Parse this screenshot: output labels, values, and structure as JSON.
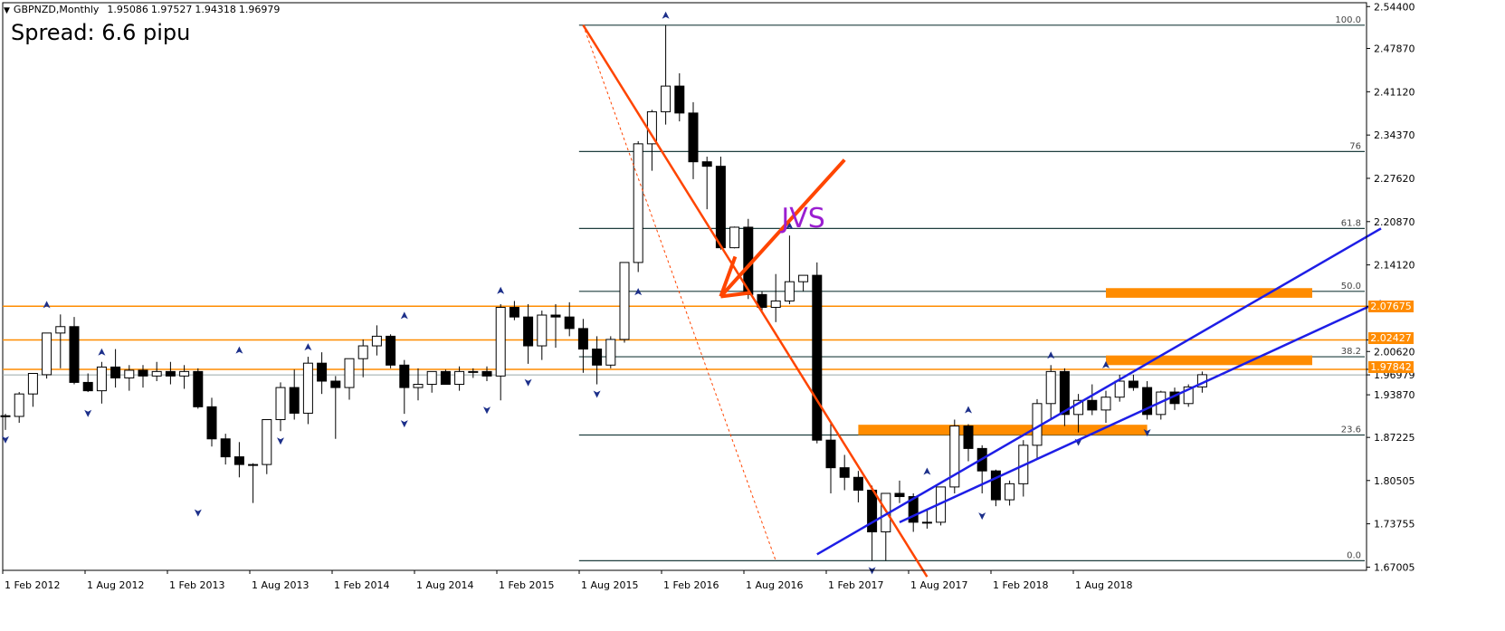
{
  "header": {
    "symbol": "GBPNZD,Monthly",
    "values": [
      "1.95086",
      "1.97527",
      "1.94318",
      "1.96979"
    ]
  },
  "spread_label": "Spread: 6.6 pipu",
  "annotation_label": "JVS",
  "colors": {
    "background": "#ffffff",
    "candle_up": "#ffffff",
    "candle_down": "#000000",
    "fib": "#1f3f3f",
    "support_resistance": "#ff8c00",
    "trendline": "#ff4500",
    "channel": "#1e1ee6",
    "annotation_text": "#9b1fd1",
    "fractal": "#1c2f8a"
  },
  "chart_data": {
    "type": "candlestick",
    "timeframe": "Monthly",
    "y_ticks": [
      "2.54400",
      "2.47870",
      "2.41120",
      "2.34370",
      "2.27620",
      "2.20870",
      "2.14120",
      "2.07675",
      "2.02427",
      "2.00620",
      "1.97842",
      "1.96979",
      "1.93870",
      "1.87225",
      "1.80505",
      "1.73755",
      "1.67005"
    ],
    "ylim": [
      1.665,
      2.55
    ],
    "x_ticks": [
      "1 Feb 2012",
      "1 Aug 2012",
      "1 Feb 2013",
      "1 Aug 2013",
      "1 Feb 2014",
      "1 Aug 2014",
      "1 Feb 2015",
      "1 Aug 2015",
      "1 Feb 2016",
      "1 Aug 2016",
      "1 Feb 2017",
      "1 Aug 2017",
      "1 Feb 2018",
      "1 Aug 2018"
    ],
    "fib_levels": [
      {
        "label": "100.0",
        "price": 2.515
      },
      {
        "label": "76",
        "price": 2.318
      },
      {
        "label": "61.8",
        "price": 2.198
      },
      {
        "label": "50.0",
        "price": 2.1
      },
      {
        "label": "38.2",
        "price": 1.998
      },
      {
        "label": "23.6",
        "price": 1.876
      },
      {
        "label": "0.0",
        "price": 1.68
      }
    ],
    "price_labels": [
      "2.07675",
      "2.02427",
      "1.97842",
      "1.96979"
    ],
    "horizontal_levels": [
      2.07675,
      2.02427,
      1.97842
    ],
    "candles": [
      {
        "o": 1.905,
        "h": 1.909,
        "l": 1.884,
        "c": 1.906
      },
      {
        "o": 1.905,
        "h": 1.943,
        "l": 1.895,
        "c": 1.94
      },
      {
        "o": 1.94,
        "h": 1.97,
        "l": 1.92,
        "c": 1.972
      },
      {
        "o": 1.97,
        "h": 2.034,
        "l": 1.964,
        "c": 2.035
      },
      {
        "o": 2.035,
        "h": 2.064,
        "l": 1.98,
        "c": 2.045
      },
      {
        "o": 2.045,
        "h": 2.06,
        "l": 1.955,
        "c": 1.958
      },
      {
        "o": 1.958,
        "h": 1.972,
        "l": 1.943,
        "c": 1.945
      },
      {
        "o": 1.945,
        "h": 1.99,
        "l": 1.925,
        "c": 1.982
      },
      {
        "o": 1.982,
        "h": 2.01,
        "l": 1.95,
        "c": 1.965
      },
      {
        "o": 1.965,
        "h": 1.985,
        "l": 1.945,
        "c": 1.977
      },
      {
        "o": 1.977,
        "h": 1.985,
        "l": 1.95,
        "c": 1.968
      },
      {
        "o": 1.968,
        "h": 1.99,
        "l": 1.96,
        "c": 1.975
      },
      {
        "o": 1.975,
        "h": 1.99,
        "l": 1.955,
        "c": 1.968
      },
      {
        "o": 1.968,
        "h": 1.985,
        "l": 1.948,
        "c": 1.975
      },
      {
        "o": 1.975,
        "h": 1.98,
        "l": 1.917,
        "c": 1.92
      },
      {
        "o": 1.92,
        "h": 1.934,
        "l": 1.858,
        "c": 1.87
      },
      {
        "o": 1.87,
        "h": 1.878,
        "l": 1.83,
        "c": 1.842
      },
      {
        "o": 1.842,
        "h": 1.865,
        "l": 1.81,
        "c": 1.83
      },
      {
        "o": 1.83,
        "h": 1.832,
        "l": 1.77,
        "c": 1.83
      },
      {
        "o": 1.83,
        "h": 1.893,
        "l": 1.815,
        "c": 1.9
      },
      {
        "o": 1.9,
        "h": 1.958,
        "l": 1.882,
        "c": 1.95
      },
      {
        "o": 1.95,
        "h": 1.978,
        "l": 1.9,
        "c": 1.91
      },
      {
        "o": 1.91,
        "h": 1.998,
        "l": 1.893,
        "c": 1.988
      },
      {
        "o": 1.988,
        "h": 2.005,
        "l": 1.94,
        "c": 1.96
      },
      {
        "o": 1.96,
        "h": 1.968,
        "l": 1.87,
        "c": 1.95
      },
      {
        "o": 1.95,
        "h": 1.995,
        "l": 1.931,
        "c": 1.995
      },
      {
        "o": 1.995,
        "h": 2.025,
        "l": 1.966,
        "c": 2.015
      },
      {
        "o": 2.015,
        "h": 2.047,
        "l": 2.0,
        "c": 2.03
      },
      {
        "o": 2.03,
        "h": 2.033,
        "l": 1.98,
        "c": 1.985
      },
      {
        "o": 1.985,
        "h": 1.993,
        "l": 1.909,
        "c": 1.95
      },
      {
        "o": 1.95,
        "h": 1.98,
        "l": 1.93,
        "c": 1.955
      },
      {
        "o": 1.955,
        "h": 1.975,
        "l": 1.942,
        "c": 1.975
      },
      {
        "o": 1.975,
        "h": 1.978,
        "l": 1.955,
        "c": 1.955
      },
      {
        "o": 1.955,
        "h": 1.983,
        "l": 1.945,
        "c": 1.975
      },
      {
        "o": 1.975,
        "h": 1.98,
        "l": 1.965,
        "c": 1.975
      },
      {
        "o": 1.975,
        "h": 1.983,
        "l": 1.96,
        "c": 1.968
      },
      {
        "o": 1.968,
        "h": 2.08,
        "l": 1.93,
        "c": 2.075
      },
      {
        "o": 2.075,
        "h": 2.085,
        "l": 2.055,
        "c": 2.06
      },
      {
        "o": 2.06,
        "h": 2.08,
        "l": 1.987,
        "c": 2.015
      },
      {
        "o": 2.015,
        "h": 2.07,
        "l": 1.993,
        "c": 2.063
      },
      {
        "o": 2.063,
        "h": 2.08,
        "l": 2.012,
        "c": 2.06
      },
      {
        "o": 2.06,
        "h": 2.083,
        "l": 2.03,
        "c": 2.042
      },
      {
        "o": 2.042,
        "h": 2.057,
        "l": 1.973,
        "c": 2.01
      },
      {
        "o": 2.01,
        "h": 2.03,
        "l": 1.955,
        "c": 1.985
      },
      {
        "o": 1.985,
        "h": 2.03,
        "l": 1.98,
        "c": 2.025
      },
      {
        "o": 2.025,
        "h": 2.14,
        "l": 2.02,
        "c": 2.145
      },
      {
        "o": 2.145,
        "h": 2.334,
        "l": 2.13,
        "c": 2.33
      },
      {
        "o": 2.33,
        "h": 2.383,
        "l": 2.288,
        "c": 2.38
      },
      {
        "o": 2.38,
        "h": 2.515,
        "l": 2.36,
        "c": 2.42
      },
      {
        "o": 2.42,
        "h": 2.44,
        "l": 2.365,
        "c": 2.378
      },
      {
        "o": 2.378,
        "h": 2.395,
        "l": 2.275,
        "c": 2.302
      },
      {
        "o": 2.302,
        "h": 2.31,
        "l": 2.228,
        "c": 2.295
      },
      {
        "o": 2.295,
        "h": 2.31,
        "l": 2.165,
        "c": 2.168
      },
      {
        "o": 2.168,
        "h": 2.201,
        "l": 2.167,
        "c": 2.2
      },
      {
        "o": 2.2,
        "h": 2.213,
        "l": 2.088,
        "c": 2.095
      },
      {
        "o": 2.095,
        "h": 2.1,
        "l": 2.07,
        "c": 2.075
      },
      {
        "o": 2.075,
        "h": 2.127,
        "l": 2.052,
        "c": 2.085
      },
      {
        "o": 2.085,
        "h": 2.187,
        "l": 2.08,
        "c": 2.115
      },
      {
        "o": 2.115,
        "h": 2.125,
        "l": 2.1,
        "c": 2.125
      },
      {
        "o": 2.125,
        "h": 2.145,
        "l": 1.863,
        "c": 1.868
      },
      {
        "o": 1.868,
        "h": 1.896,
        "l": 1.785,
        "c": 1.825
      },
      {
        "o": 1.825,
        "h": 1.845,
        "l": 1.79,
        "c": 1.81
      },
      {
        "o": 1.81,
        "h": 1.82,
        "l": 1.771,
        "c": 1.79
      },
      {
        "o": 1.79,
        "h": 1.797,
        "l": 1.68,
        "c": 1.725
      },
      {
        "o": 1.725,
        "h": 1.782,
        "l": 1.68,
        "c": 1.785
      },
      {
        "o": 1.785,
        "h": 1.805,
        "l": 1.77,
        "c": 1.78
      },
      {
        "o": 1.78,
        "h": 1.785,
        "l": 1.725,
        "c": 1.74
      },
      {
        "o": 1.74,
        "h": 1.76,
        "l": 1.73,
        "c": 1.74
      },
      {
        "o": 1.74,
        "h": 1.795,
        "l": 1.735,
        "c": 1.795
      },
      {
        "o": 1.795,
        "h": 1.9,
        "l": 1.785,
        "c": 1.89
      },
      {
        "o": 1.89,
        "h": 1.893,
        "l": 1.835,
        "c": 1.855
      },
      {
        "o": 1.855,
        "h": 1.86,
        "l": 1.785,
        "c": 1.82
      },
      {
        "o": 1.82,
        "h": 1.822,
        "l": 1.765,
        "c": 1.775
      },
      {
        "o": 1.775,
        "h": 1.805,
        "l": 1.766,
        "c": 1.8
      },
      {
        "o": 1.8,
        "h": 1.868,
        "l": 1.78,
        "c": 1.86
      },
      {
        "o": 1.86,
        "h": 1.932,
        "l": 1.84,
        "c": 1.925
      },
      {
        "o": 1.925,
        "h": 1.985,
        "l": 1.9,
        "c": 1.975
      },
      {
        "o": 1.975,
        "h": 1.98,
        "l": 1.89,
        "c": 1.908
      },
      {
        "o": 1.908,
        "h": 1.94,
        "l": 1.88,
        "c": 1.93
      },
      {
        "o": 1.93,
        "h": 1.955,
        "l": 1.907,
        "c": 1.915
      },
      {
        "o": 1.915,
        "h": 1.945,
        "l": 1.895,
        "c": 1.935
      },
      {
        "o": 1.935,
        "h": 1.97,
        "l": 1.928,
        "c": 1.96
      },
      {
        "o": 1.96,
        "h": 1.97,
        "l": 1.945,
        "c": 1.95
      },
      {
        "o": 1.95,
        "h": 1.96,
        "l": 1.9,
        "c": 1.908
      },
      {
        "o": 1.908,
        "h": 1.945,
        "l": 1.9,
        "c": 1.943
      },
      {
        "o": 1.943,
        "h": 1.95,
        "l": 1.915,
        "c": 1.925
      },
      {
        "o": 1.925,
        "h": 1.955,
        "l": 1.92,
        "c": 1.951
      },
      {
        "o": 1.951,
        "h": 1.975,
        "l": 1.942,
        "c": 1.97
      }
    ],
    "fractals_up": [
      {
        "i": 3,
        "price": 2.064
      },
      {
        "i": 7,
        "price": 1.99
      },
      {
        "i": 17,
        "price": 1.993
      },
      {
        "i": 22,
        "price": 1.998
      },
      {
        "i": 29,
        "price": 2.047
      },
      {
        "i": 36,
        "price": 2.086
      },
      {
        "i": 46,
        "price": 2.084
      },
      {
        "i": 48,
        "price": 2.515
      },
      {
        "i": 57,
        "price": 2.187
      },
      {
        "i": 70,
        "price": 1.9
      },
      {
        "i": 76,
        "price": 1.985
      },
      {
        "i": 80,
        "price": 1.97
      },
      {
        "i": 67,
        "price": 1.804
      }
    ],
    "fractals_down": [
      {
        "i": 0,
        "price": 1.884
      },
      {
        "i": 6,
        "price": 1.925
      },
      {
        "i": 14,
        "price": 1.77
      },
      {
        "i": 20,
        "price": 1.882
      },
      {
        "i": 29,
        "price": 1.909
      },
      {
        "i": 35,
        "price": 1.93
      },
      {
        "i": 38,
        "price": 1.973
      },
      {
        "i": 43,
        "price": 1.955
      },
      {
        "i": 63,
        "price": 1.68
      },
      {
        "i": 71,
        "price": 1.765
      },
      {
        "i": 78,
        "price": 1.88
      },
      {
        "i": 83,
        "price": 1.895
      }
    ],
    "zones": [
      {
        "start_i": 80,
        "end_i": 95,
        "top": 2.105,
        "bottom": 2.09
      },
      {
        "start_i": 80,
        "end_i": 95,
        "top": 2.0,
        "bottom": 1.985
      },
      {
        "start_i": 62,
        "end_i": 83,
        "top": 1.892,
        "bottom": 1.876
      }
    ],
    "trendlines": [
      {
        "name": "",
        "from_i": 42,
        "from_p": 2.515,
        "to_i": 67,
        "to_p": 1.655,
        "style": "solid"
      },
      {
        "name": "",
        "from_i": 42,
        "from_p": 2.515,
        "to_i": 56,
        "to_p": 1.68,
        "style": "dotted"
      },
      {
        "name": "",
        "from_i": 59,
        "from_p": 1.69,
        "to_i": 100,
        "to_p": 2.198,
        "style": "solid"
      },
      {
        "name": "",
        "from_i": 65,
        "from_p": 1.74,
        "to_i": 100,
        "to_p": 2.085,
        "style": "solid"
      }
    ],
    "arrow": {
      "from_i": 61,
      "from_p": 2.305,
      "to_i": 52,
      "to_p": 2.092
    },
    "arrow_label_anchor": {
      "i": 58,
      "p": 2.2
    }
  }
}
